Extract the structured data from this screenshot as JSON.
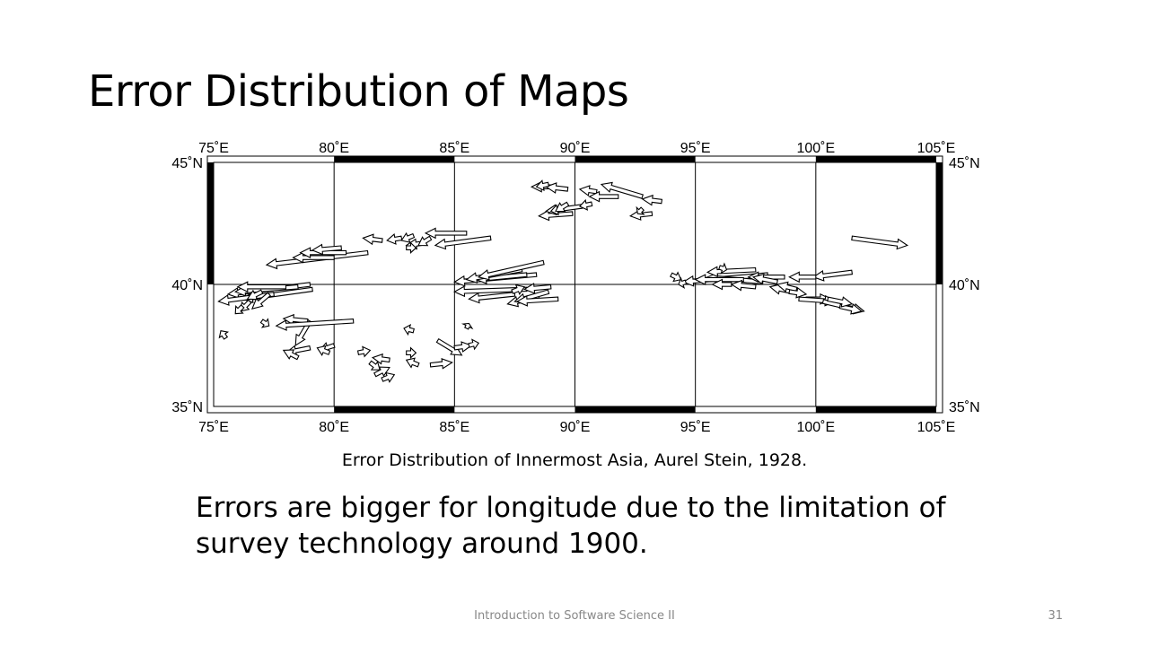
{
  "slide": {
    "title": "Error Distribution of Maps",
    "caption": "Error Distribution of Innermost Asia, Aurel Stein, 1928.",
    "body": "Errors are bigger for longitude due to the limitation of survey technology around 1900.",
    "footer": "Introduction to Software Science II",
    "page_number": "31"
  },
  "chart_data": {
    "type": "map",
    "title": "",
    "xlim": [
      75,
      105
    ],
    "ylim": [
      35,
      45
    ],
    "x_ticks": [
      75,
      80,
      85,
      90,
      95,
      100,
      105
    ],
    "x_tick_labels": [
      "75˚E",
      "80˚E",
      "85˚E",
      "90˚E",
      "95˚E",
      "100˚E",
      "105˚E"
    ],
    "y_ticks": [
      35,
      40,
      45
    ],
    "y_tick_labels": [
      "35˚N",
      "40˚N",
      "45˚N"
    ],
    "grid": true,
    "arrows": [
      [
        79.0,
        40.0,
        75.6,
        39.6
      ],
      [
        78.5,
        39.9,
        75.9,
        39.7
      ],
      [
        79.1,
        39.8,
        76.2,
        39.4
      ],
      [
        78.0,
        39.9,
        76.0,
        39.9
      ],
      [
        77.5,
        39.6,
        75.2,
        39.3
      ],
      [
        77.0,
        39.7,
        76.4,
        39.4
      ],
      [
        76.5,
        39.3,
        76.1,
        38.9
      ],
      [
        76.2,
        39.1,
        75.9,
        38.8
      ],
      [
        77.3,
        39.6,
        76.6,
        39.0
      ],
      [
        75.5,
        37.8,
        75.3,
        38.1
      ],
      [
        77.0,
        38.5,
        77.3,
        38.3
      ],
      [
        81.4,
        41.3,
        77.2,
        40.8
      ],
      [
        80.0,
        41.1,
        78.3,
        41.1
      ],
      [
        80.5,
        41.3,
        78.6,
        41.3
      ],
      [
        80.3,
        41.5,
        79.1,
        41.4
      ],
      [
        82.0,
        41.8,
        81.2,
        41.9
      ],
      [
        82.8,
        41.9,
        82.2,
        41.8
      ],
      [
        83.3,
        42.0,
        82.8,
        41.8
      ],
      [
        83.8,
        41.7,
        83.0,
        41.6
      ],
      [
        86.5,
        41.9,
        84.2,
        41.6
      ],
      [
        85.5,
        42.1,
        83.8,
        42.1
      ],
      [
        84.0,
        41.9,
        83.5,
        41.6
      ],
      [
        83.0,
        41.5,
        83.4,
        41.5
      ],
      [
        79.0,
        38.5,
        78.4,
        37.5
      ],
      [
        79.0,
        37.4,
        78.0,
        37.2
      ],
      [
        78.5,
        37.0,
        77.9,
        37.3
      ],
      [
        80.0,
        37.5,
        79.4,
        37.3
      ],
      [
        79.8,
        37.2,
        79.3,
        37.4
      ],
      [
        81.0,
        37.2,
        81.5,
        37.3
      ],
      [
        81.5,
        36.8,
        81.9,
        36.5
      ],
      [
        82.3,
        36.9,
        81.6,
        37.0
      ],
      [
        81.7,
        36.3,
        82.3,
        36.6
      ],
      [
        82.0,
        36.1,
        82.5,
        36.3
      ],
      [
        83.5,
        36.7,
        83.0,
        36.9
      ],
      [
        84.0,
        36.7,
        84.9,
        36.8
      ],
      [
        83.0,
        37.2,
        83.4,
        37.2
      ],
      [
        83.3,
        38.1,
        82.9,
        38.2
      ],
      [
        84.3,
        37.7,
        85.3,
        37.1
      ],
      [
        85.0,
        37.4,
        85.7,
        37.5
      ],
      [
        85.6,
        37.5,
        86.0,
        37.6
      ],
      [
        85.5,
        38.2,
        85.6,
        38.4
      ],
      [
        78.9,
        38.5,
        77.9,
        38.6
      ],
      [
        80.8,
        38.5,
        77.6,
        38.3
      ],
      [
        88.4,
        40.4,
        85.0,
        40.1
      ],
      [
        88.0,
        40.4,
        85.9,
        40.2
      ],
      [
        87.8,
        40.6,
        85.5,
        40.2
      ],
      [
        88.7,
        40.9,
        86.0,
        40.3
      ],
      [
        88.0,
        39.8,
        85.0,
        39.7
      ],
      [
        87.5,
        39.6,
        85.6,
        39.4
      ],
      [
        88.5,
        39.5,
        87.2,
        39.2
      ],
      [
        88.9,
        39.7,
        87.5,
        39.3
      ],
      [
        89.3,
        39.4,
        87.6,
        39.3
      ],
      [
        89.0,
        39.9,
        87.9,
        39.8
      ],
      [
        87.4,
        39.7,
        87.9,
        39.9
      ],
      [
        89.2,
        44.0,
        88.2,
        44.0
      ],
      [
        89.7,
        43.9,
        88.8,
        44.0
      ],
      [
        88.9,
        44.1,
        88.4,
        44.0
      ],
      [
        89.9,
        42.9,
        88.5,
        42.8
      ],
      [
        90.3,
        43.2,
        88.8,
        43.0
      ],
      [
        89.5,
        43.1,
        89.0,
        43.0
      ],
      [
        89.7,
        43.3,
        89.2,
        43.0
      ],
      [
        90.7,
        43.3,
        90.2,
        43.2
      ],
      [
        90.9,
        43.8,
        90.2,
        43.9
      ],
      [
        91.8,
        43.6,
        90.6,
        43.6
      ],
      [
        92.8,
        43.6,
        91.1,
        44.1
      ],
      [
        93.6,
        43.4,
        92.8,
        43.5
      ],
      [
        93.2,
        42.9,
        92.3,
        42.8
      ],
      [
        92.8,
        43.1,
        92.6,
        42.9
      ],
      [
        98.0,
        40.4,
        94.5,
        40.1
      ],
      [
        97.8,
        40.1,
        95.5,
        40.3
      ],
      [
        97.5,
        40.6,
        95.5,
        40.5
      ],
      [
        97.0,
        40.2,
        95.0,
        40.2
      ],
      [
        96.5,
        40.0,
        95.7,
        40.0
      ],
      [
        97.5,
        39.9,
        96.5,
        40.0
      ],
      [
        98.7,
        40.3,
        97.2,
        40.3
      ],
      [
        98.4,
        40.1,
        97.4,
        40.3
      ],
      [
        99.0,
        39.7,
        98.1,
        39.9
      ],
      [
        99.2,
        39.8,
        98.4,
        40.0
      ],
      [
        94.0,
        40.4,
        94.4,
        40.2
      ],
      [
        94.6,
        40.1,
        94.3,
        40.0
      ],
      [
        96.0,
        40.7,
        96.3,
        40.6
      ],
      [
        101.5,
        40.5,
        99.9,
        40.3
      ],
      [
        100.0,
        40.3,
        98.9,
        40.3
      ],
      [
        98.9,
        39.7,
        99.6,
        39.6
      ],
      [
        99.6,
        39.4,
        100.6,
        39.4
      ],
      [
        99.3,
        39.4,
        100.8,
        39.3
      ],
      [
        100.3,
        39.3,
        102.0,
        38.9
      ],
      [
        101.0,
        39.1,
        101.9,
        38.9
      ],
      [
        100.5,
        39.4,
        101.5,
        39.2
      ],
      [
        101.5,
        41.9,
        103.8,
        41.6
      ]
    ]
  }
}
